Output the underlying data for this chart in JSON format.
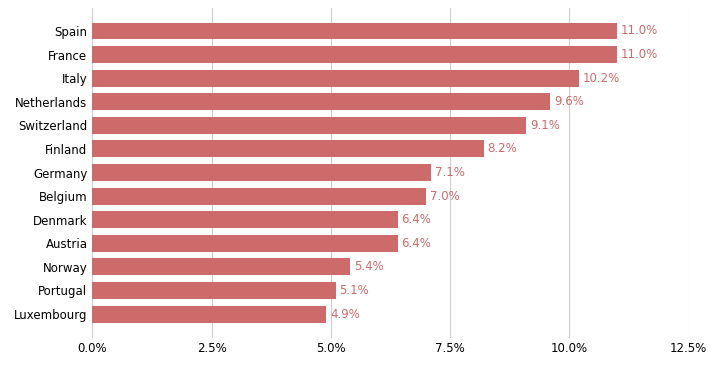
{
  "categories": [
    "Luxembourg",
    "Portugal",
    "Norway",
    "Austria",
    "Denmark",
    "Belgium",
    "Germany",
    "Finland",
    "Switzerland",
    "Netherlands",
    "Italy",
    "France",
    "Spain"
  ],
  "values": [
    4.9,
    5.1,
    5.4,
    6.4,
    6.4,
    7.0,
    7.1,
    8.2,
    9.1,
    9.6,
    10.2,
    11.0,
    11.0
  ],
  "labels": [
    "4.9%",
    "5.1%",
    "5.4%",
    "6.4%",
    "6.4%",
    "7.0%",
    "7.1%",
    "8.2%",
    "9.1%",
    "9.6%",
    "10.2%",
    "11.0%",
    "11.0%"
  ],
  "bar_color": "#cd6b6b",
  "label_color": "#cd6b6b",
  "background_color": "#ffffff",
  "xlim": [
    0,
    12.5
  ],
  "xticks": [
    0,
    2.5,
    5.0,
    7.5,
    10.0,
    12.5
  ],
  "xtick_labels": [
    "0.0%",
    "2.5%",
    "5.0%",
    "7.5%",
    "10.0%",
    "12.5%"
  ],
  "grid_color": "#cccccc",
  "label_fontsize": 8.5,
  "tick_fontsize": 8.5,
  "bar_height": 0.72
}
